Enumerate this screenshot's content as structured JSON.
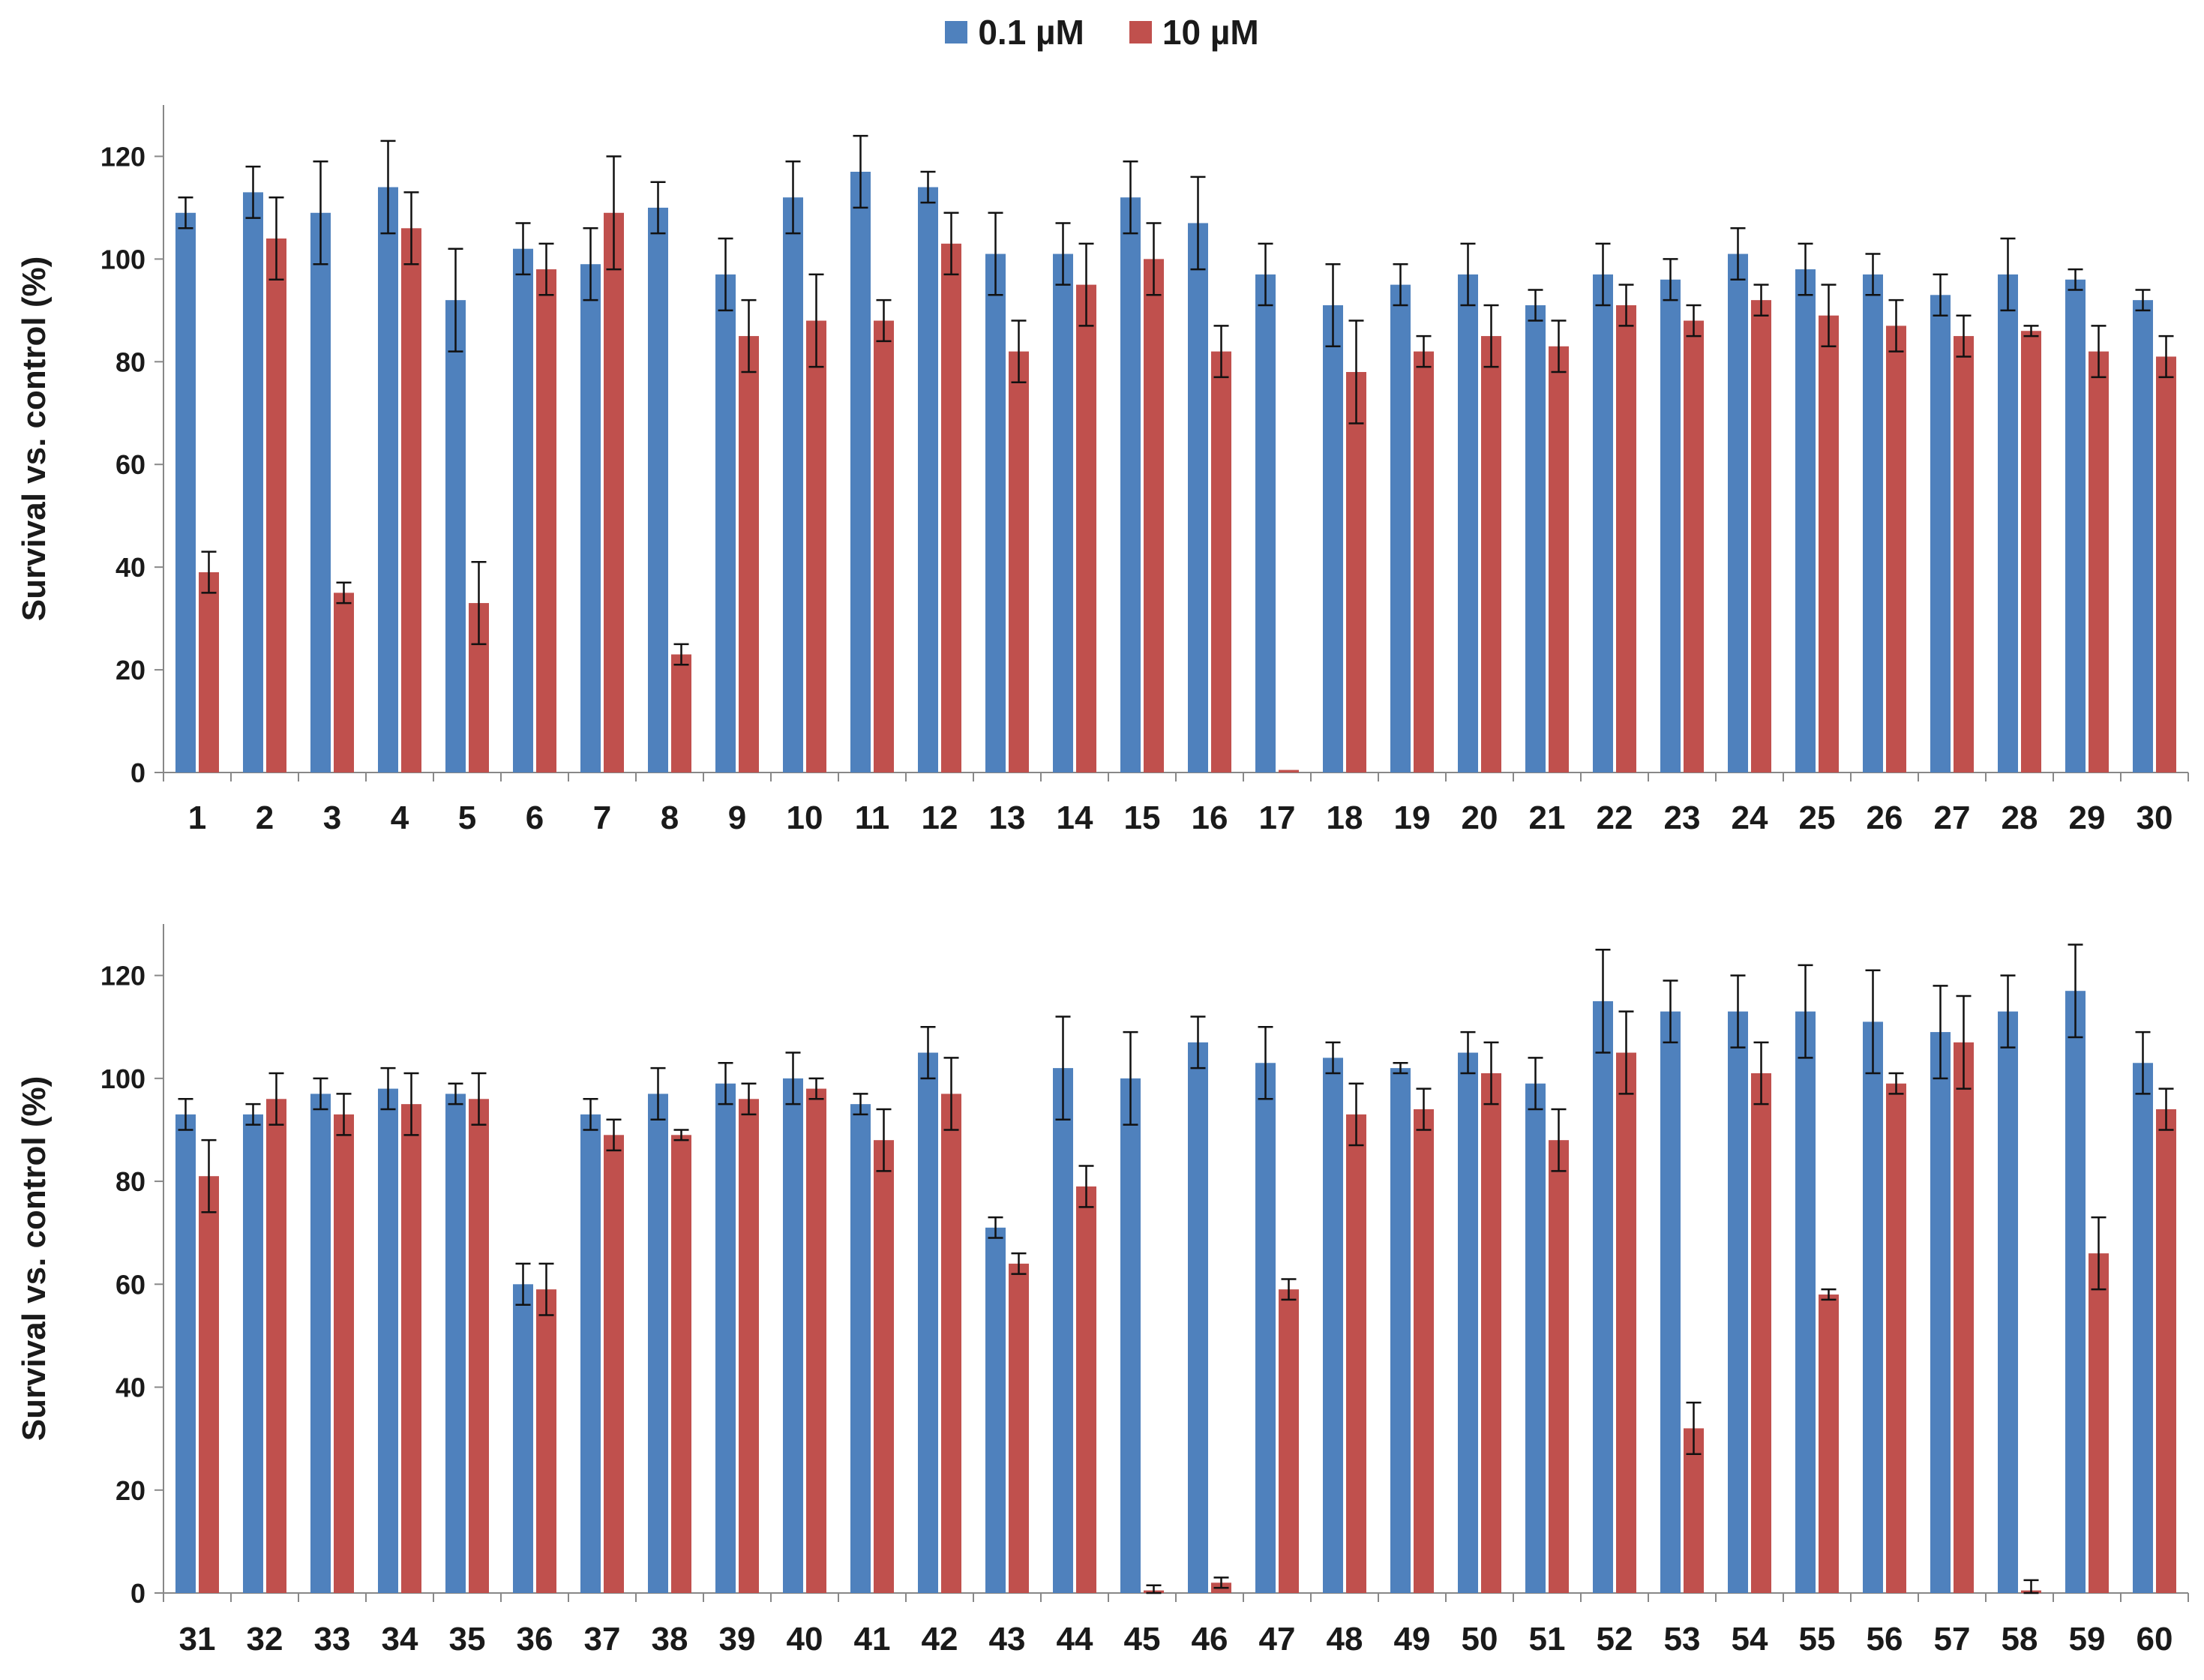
{
  "legend": {
    "series1_label": "0.1 µM",
    "series2_label": "10 µM",
    "series1_color": "#4f81bd",
    "series2_color": "#c0504d"
  },
  "chart_data": [
    {
      "type": "bar",
      "title": "",
      "xlabel": "",
      "ylabel": "Survival vs. control (%)",
      "ylim": [
        0,
        130
      ],
      "yticks": [
        0,
        20,
        40,
        60,
        80,
        100,
        120
      ],
      "categories": [
        "1",
        "2",
        "3",
        "4",
        "5",
        "6",
        "7",
        "8",
        "9",
        "10",
        "11",
        "12",
        "13",
        "14",
        "15",
        "16",
        "17",
        "18",
        "19",
        "20",
        "21",
        "22",
        "23",
        "24",
        "25",
        "26",
        "27",
        "28",
        "29",
        "30"
      ],
      "series": [
        {
          "name": "0.1 µM",
          "values": [
            109,
            113,
            109,
            114,
            92,
            102,
            99,
            110,
            97,
            112,
            117,
            114,
            101,
            101,
            112,
            107,
            97,
            91,
            95,
            97,
            91,
            97,
            96,
            101,
            98,
            97,
            93,
            97,
            96,
            92
          ],
          "errors": [
            3,
            5,
            10,
            9,
            10,
            5,
            7,
            5,
            7,
            7,
            7,
            3,
            8,
            6,
            7,
            9,
            6,
            8,
            4,
            6,
            3,
            6,
            4,
            5,
            5,
            4,
            4,
            7,
            2,
            2
          ]
        },
        {
          "name": "10 µM",
          "values": [
            39,
            104,
            35,
            106,
            33,
            98,
            109,
            23,
            85,
            88,
            88,
            103,
            82,
            95,
            100,
            82,
            0.5,
            78,
            82,
            85,
            83,
            91,
            88,
            92,
            89,
            87,
            85,
            86,
            82,
            81
          ],
          "errors": [
            4,
            8,
            2,
            7,
            8,
            5,
            11,
            2,
            7,
            9,
            4,
            6,
            6,
            8,
            7,
            5,
            0,
            10,
            3,
            6,
            5,
            4,
            3,
            3,
            6,
            5,
            4,
            1,
            5,
            4
          ]
        }
      ]
    },
    {
      "type": "bar",
      "title": "",
      "xlabel": "",
      "ylabel": "Survival vs. control (%)",
      "ylim": [
        0,
        130
      ],
      "yticks": [
        0,
        20,
        40,
        60,
        80,
        100,
        120
      ],
      "categories": [
        "31",
        "32",
        "33",
        "34",
        "35",
        "36",
        "37",
        "38",
        "39",
        "40",
        "41",
        "42",
        "43",
        "44",
        "45",
        "46",
        "47",
        "48",
        "49",
        "50",
        "51",
        "52",
        "53",
        "54",
        "55",
        "56",
        "57",
        "58",
        "59",
        "60"
      ],
      "series": [
        {
          "name": "0.1 µM",
          "values": [
            93,
            93,
            97,
            98,
            97,
            60,
            93,
            97,
            99,
            100,
            95,
            105,
            71,
            102,
            100,
            107,
            103,
            104,
            102,
            105,
            99,
            115,
            113,
            113,
            113,
            111,
            109,
            113,
            117,
            103
          ],
          "errors": [
            3,
            2,
            3,
            4,
            2,
            4,
            3,
            5,
            4,
            5,
            2,
            5,
            2,
            10,
            9,
            5,
            7,
            3,
            1,
            4,
            5,
            10,
            6,
            7,
            9,
            10,
            9,
            7,
            9,
            6
          ]
        },
        {
          "name": "10 µM",
          "values": [
            81,
            96,
            93,
            95,
            96,
            59,
            89,
            89,
            96,
            98,
            88,
            97,
            64,
            79,
            0.5,
            2,
            59,
            93,
            94,
            101,
            88,
            105,
            32,
            101,
            58,
            99,
            107,
            0.5,
            66,
            94
          ],
          "errors": [
            7,
            5,
            4,
            6,
            5,
            5,
            3,
            1,
            3,
            2,
            6,
            7,
            2,
            4,
            1,
            1,
            2,
            6,
            4,
            6,
            6,
            8,
            5,
            6,
            1,
            2,
            9,
            2,
            7,
            4
          ]
        }
      ]
    }
  ]
}
